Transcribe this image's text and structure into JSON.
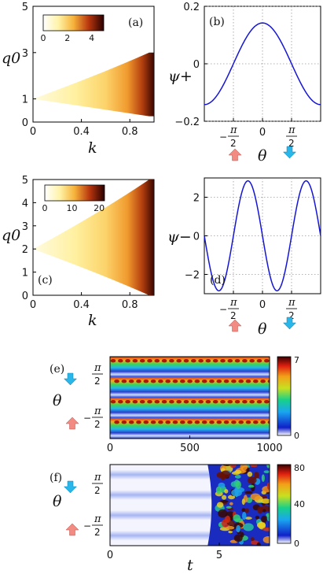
{
  "chart_data": [
    {
      "id": "a",
      "type": "heatmap",
      "panel_label": "(a)",
      "xlabel": "k",
      "ylabel": "q0",
      "xticks": [
        "0",
        "0.4",
        "0.8"
      ],
      "xtick_values": [
        0,
        0.4,
        0.8
      ],
      "yticks": [
        "0",
        "1",
        "3",
        "5"
      ],
      "ytick_values": [
        0,
        1,
        3,
        5
      ],
      "xlim": [
        0,
        1
      ],
      "ylim": [
        0,
        5
      ],
      "colorbar": {
        "ticks": [
          "0",
          "2",
          "4"
        ],
        "tick_values": [
          0,
          2,
          4
        ],
        "range": [
          0,
          5
        ]
      },
      "region": {
        "apex": [
          0,
          1
        ],
        "upper_end": [
          0.96,
          3.0
        ],
        "lower_end": [
          0.96,
          0.25
        ]
      }
    },
    {
      "id": "b",
      "type": "line",
      "panel_label": "(b)",
      "ylabel": "ψ+",
      "xlabel": "θ",
      "xticks": [
        "−π/2",
        "0",
        "π/2"
      ],
      "xtick_values": [
        -1.5708,
        0,
        1.5708
      ],
      "yticks": [
        "0.2",
        "0",
        "−0.2"
      ],
      "ytick_values": [
        0.2,
        0,
        -0.2
      ],
      "xlim": [
        -3.1416,
        3.1416
      ],
      "ylim": [
        -0.2,
        0.2
      ],
      "grid": true,
      "series": [
        {
          "amplitude": 0.142,
          "form": "cos"
        }
      ]
    },
    {
      "id": "c",
      "type": "heatmap",
      "panel_label": "(c)",
      "xlabel": "k",
      "ylabel": "q0",
      "xticks": [
        "0",
        "0.4",
        "0.8"
      ],
      "xtick_values": [
        0,
        0.4,
        0.8
      ],
      "yticks": [
        "0",
        "1",
        "2",
        "3",
        "4",
        "5"
      ],
      "ytick_values": [
        0,
        1,
        2,
        3,
        4,
        5
      ],
      "xlim": [
        0,
        1
      ],
      "ylim": [
        0,
        5
      ],
      "colorbar": {
        "ticks": [
          "0",
          "10",
          "20"
        ],
        "tick_values": [
          0,
          10,
          20
        ],
        "range": [
          0,
          22
        ]
      },
      "region": {
        "apex": [
          0,
          2
        ],
        "upper_end": [
          0.96,
          5.0
        ],
        "lower_end": [
          0.96,
          0.0
        ]
      }
    },
    {
      "id": "d",
      "type": "line",
      "panel_label": "(d)",
      "ylabel": "ψ−",
      "xlabel": "θ",
      "xticks": [
        "−π/2",
        "0",
        "π/2"
      ],
      "xtick_values": [
        -1.5708,
        0,
        1.5708
      ],
      "yticks": [
        "2",
        "0",
        "−2"
      ],
      "ytick_values": [
        2,
        0,
        -2
      ],
      "xlim": [
        -3.1416,
        3.1416
      ],
      "ylim": [
        -3,
        3
      ],
      "grid": true,
      "series": [
        {
          "amplitude": 2.85,
          "form": "-sin2"
        }
      ]
    },
    {
      "id": "e",
      "type": "heatmap",
      "panel_label": "(e)",
      "ylabel": "θ",
      "xticks": [
        "0",
        "500",
        "1000"
      ],
      "xtick_values": [
        0,
        500,
        1000
      ],
      "yticks": [
        "π/2",
        "−π/2"
      ],
      "xlim": [
        0,
        1000
      ],
      "colorbar": {
        "ticks": [
          "7",
          "0"
        ],
        "tick_values": [
          7,
          0
        ],
        "range": [
          0,
          7
        ]
      }
    },
    {
      "id": "f",
      "type": "heatmap",
      "panel_label": "(f)",
      "ylabel": "θ",
      "xlabel": "t",
      "xticks": [
        "0",
        "5"
      ],
      "xtick_values": [
        0,
        5
      ],
      "yticks": [
        "π/2",
        "−π/2"
      ],
      "xlim": [
        0,
        7.3
      ],
      "transition_t": 4.9,
      "colorbar": {
        "ticks": [
          "80",
          "40",
          "0"
        ],
        "tick_values": [
          80,
          40,
          0
        ],
        "range": [
          0,
          80
        ]
      }
    }
  ],
  "colors": {
    "line": "#1515d6",
    "arrow_up": "#f28b82",
    "arrow_down": "#29b6e8",
    "grid": "#9a9a9a"
  }
}
